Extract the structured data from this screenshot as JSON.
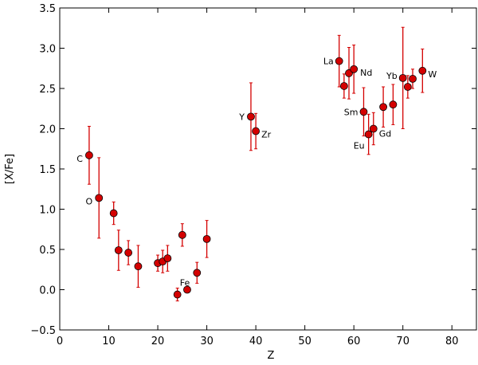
{
  "chart_data": {
    "type": "scatter",
    "xlabel": "Z",
    "ylabel": "[X/Fe]",
    "xlim": [
      0,
      85
    ],
    "ylim": [
      -0.5,
      3.5
    ],
    "xticks": [
      0,
      10,
      20,
      30,
      40,
      50,
      60,
      70,
      80
    ],
    "yticks": [
      {
        "value": -0.5,
        "label": "−0.5"
      },
      {
        "value": 0,
        "label": "0.0"
      },
      0.5,
      {
        "value": 1,
        "label": "1.0"
      },
      1.5,
      {
        "value": 2,
        "label": "2.0"
      },
      2.5,
      {
        "value": 3,
        "label": "3.0"
      },
      3.5
    ],
    "color": "#d40000",
    "error_color": "#d40000",
    "x": [
      6,
      8,
      11,
      12,
      14,
      16,
      20,
      21,
      22,
      24,
      25,
      26,
      28,
      30,
      39,
      40,
      57,
      58,
      59,
      60,
      62,
      63,
      64,
      66,
      68,
      70,
      71,
      72,
      74
    ],
    "values": [
      1.67,
      1.14,
      0.95,
      0.49,
      0.46,
      0.29,
      0.33,
      0.35,
      0.39,
      -0.06,
      0.68,
      0.0,
      0.21,
      0.63,
      2.15,
      1.97,
      2.84,
      2.53,
      2.69,
      2.74,
      2.21,
      1.93,
      2.0,
      2.27,
      2.3,
      2.63,
      2.52,
      2.62,
      2.72
    ],
    "errors": [
      0.36,
      0.5,
      0.14,
      0.25,
      0.15,
      0.26,
      0.1,
      0.14,
      0.16,
      0.08,
      0.14,
      0.03,
      0.13,
      0.23,
      0.42,
      0.22,
      0.32,
      0.15,
      0.32,
      0.3,
      0.3,
      0.25,
      0.2,
      0.25,
      0.25,
      0.63,
      0.14,
      0.12,
      0.27
    ],
    "point_labels": [
      "C",
      "O",
      null,
      null,
      null,
      null,
      null,
      null,
      null,
      null,
      null,
      "Fe",
      null,
      null,
      "Y",
      "Zr",
      "La",
      null,
      null,
      "Nd",
      "Sm",
      "Eu",
      "Gd",
      null,
      null,
      "Yb",
      null,
      null,
      "W"
    ]
  }
}
